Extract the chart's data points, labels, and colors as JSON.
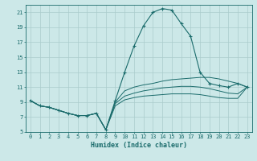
{
  "xlabel": "Humidex (Indice chaleur)",
  "ylabel": "",
  "background_color": "#cce8e8",
  "grid_color": "#aacccc",
  "line_color": "#1a6b6b",
  "xlim": [
    -0.5,
    23.5
  ],
  "ylim": [
    5,
    22
  ],
  "yticks": [
    5,
    7,
    9,
    11,
    13,
    15,
    17,
    19,
    21
  ],
  "xticks": [
    0,
    1,
    2,
    3,
    4,
    5,
    6,
    7,
    8,
    9,
    10,
    11,
    12,
    13,
    14,
    15,
    16,
    17,
    18,
    19,
    20,
    21,
    22,
    23
  ],
  "line1_x": [
    0,
    1,
    2,
    3,
    4,
    5,
    6,
    7,
    8,
    9,
    10,
    11,
    12,
    13,
    14,
    15,
    16,
    17,
    18,
    19,
    20,
    21,
    22,
    23
  ],
  "line1_y": [
    9.2,
    8.5,
    8.3,
    7.9,
    7.5,
    7.2,
    7.2,
    7.5,
    5.3,
    9.2,
    13.0,
    16.5,
    19.2,
    21.0,
    21.5,
    21.3,
    19.5,
    17.8,
    13.0,
    11.5,
    11.2,
    11.0,
    11.5,
    11.0
  ],
  "line2_x": [
    0,
    1,
    2,
    3,
    4,
    5,
    6,
    7,
    8,
    9,
    10,
    11,
    12,
    13,
    14,
    15,
    16,
    17,
    18,
    19,
    20,
    21,
    22,
    23
  ],
  "line2_y": [
    9.2,
    8.5,
    8.3,
    7.9,
    7.5,
    7.2,
    7.2,
    7.5,
    5.3,
    9.0,
    10.5,
    11.0,
    11.3,
    11.5,
    11.8,
    12.0,
    12.1,
    12.2,
    12.3,
    12.3,
    12.1,
    11.8,
    11.5,
    11.0
  ],
  "line3_x": [
    0,
    1,
    2,
    3,
    4,
    5,
    6,
    7,
    8,
    9,
    10,
    11,
    12,
    13,
    14,
    15,
    16,
    17,
    18,
    19,
    20,
    21,
    22,
    23
  ],
  "line3_y": [
    9.2,
    8.5,
    8.3,
    7.9,
    7.5,
    7.2,
    7.2,
    7.5,
    5.3,
    8.8,
    9.8,
    10.2,
    10.5,
    10.7,
    10.9,
    11.0,
    11.1,
    11.1,
    11.0,
    10.8,
    10.5,
    10.2,
    10.1,
    11.0
  ],
  "line4_x": [
    0,
    1,
    2,
    3,
    4,
    5,
    6,
    7,
    8,
    9,
    10,
    11,
    12,
    13,
    14,
    15,
    16,
    17,
    18,
    19,
    20,
    21,
    22,
    23
  ],
  "line4_y": [
    9.2,
    8.5,
    8.3,
    7.9,
    7.5,
    7.2,
    7.2,
    7.5,
    5.3,
    8.5,
    9.3,
    9.6,
    9.8,
    9.9,
    10.0,
    10.1,
    10.1,
    10.1,
    10.0,
    9.8,
    9.6,
    9.5,
    9.5,
    11.0
  ]
}
